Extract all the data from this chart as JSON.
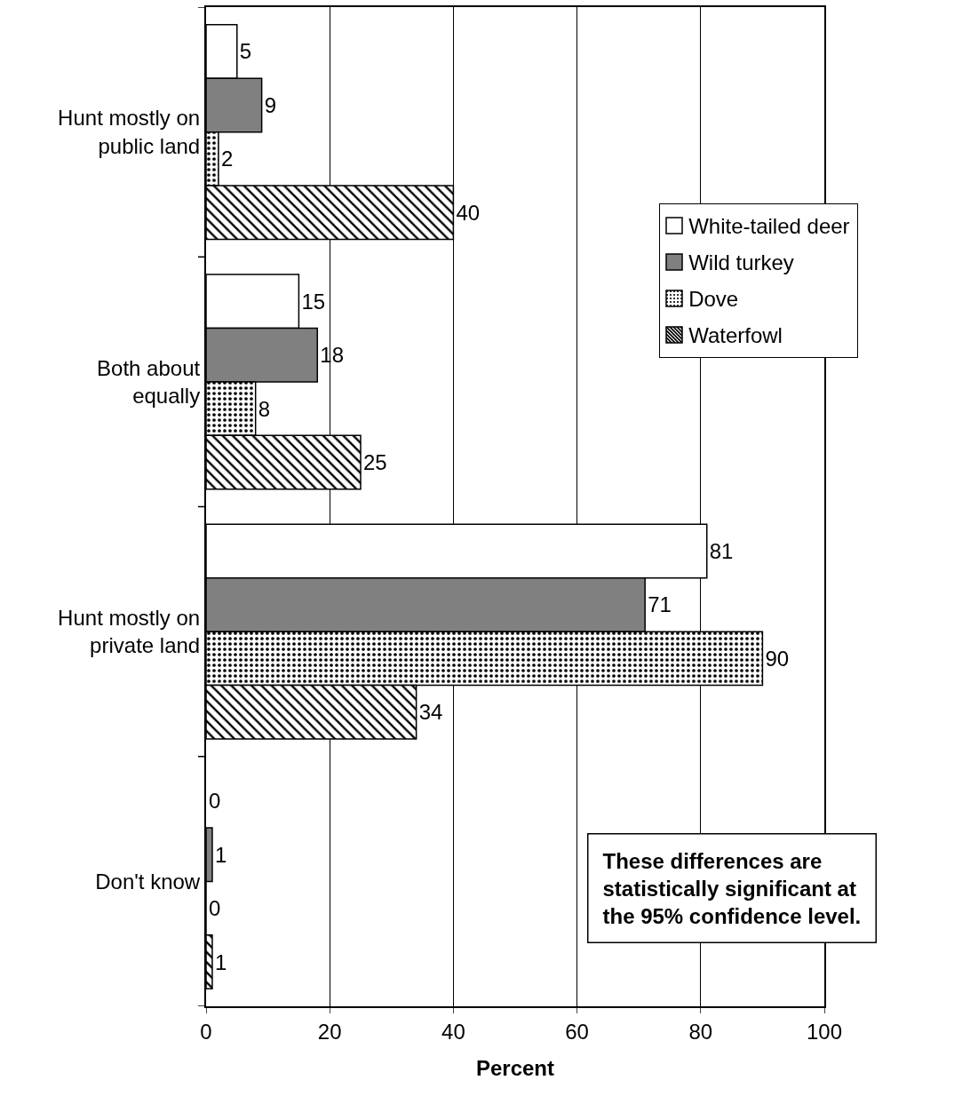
{
  "chart_data": {
    "type": "bar",
    "orientation": "horizontal",
    "xlabel": "Percent",
    "categories": [
      "Hunt mostly on public land",
      "Both about equally",
      "Hunt mostly on private land",
      "Don't know"
    ],
    "series": [
      {
        "name": "White-tailed deer",
        "color": "#ffffff",
        "values": [
          5,
          15,
          81,
          0
        ]
      },
      {
        "name": "Wild turkey",
        "color": "#808080",
        "values": [
          9,
          18,
          71,
          1
        ]
      },
      {
        "name": "Dove",
        "color": "#000000",
        "values": [
          2,
          8,
          90,
          0
        ]
      },
      {
        "name": "Waterfowl",
        "color": "#000000",
        "values": [
          40,
          25,
          34,
          1
        ]
      }
    ],
    "xlim": [
      0,
      100
    ],
    "xticks": [
      0,
      20,
      40,
      60,
      80,
      100
    ],
    "grid": "x",
    "legend": "right",
    "data_labels": true,
    "annotations": [
      "These differences are statistically significant at the 95% confidence level."
    ]
  }
}
